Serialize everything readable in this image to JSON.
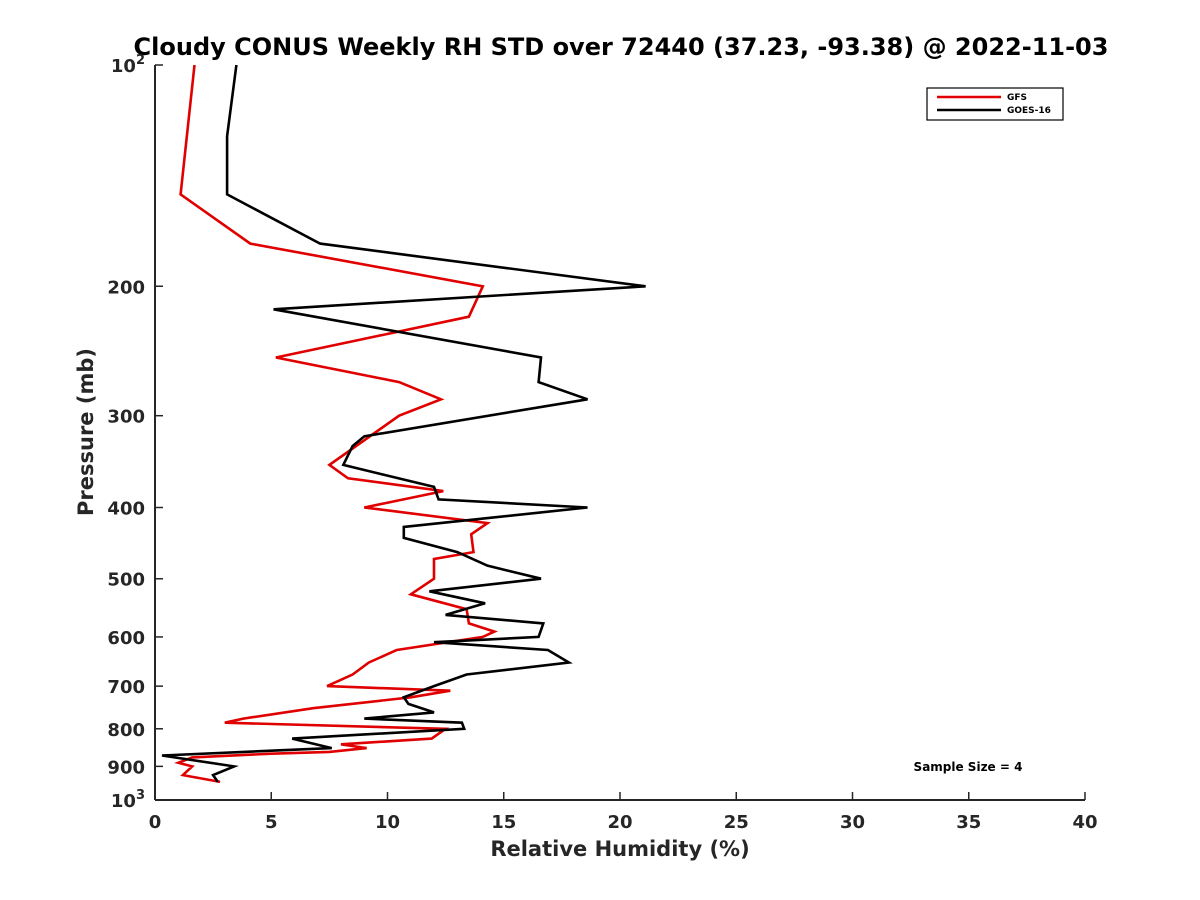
{
  "chart_data": {
    "type": "line",
    "title": "Cloudy CONUS Weekly RH STD over 72440 (37.23, -93.38) @ 2022-11-03",
    "xlabel": "Relative Humidity (%)",
    "ylabel": "Pressure (mb)",
    "xlim": [
      0,
      40
    ],
    "ylim": [
      100,
      1000
    ],
    "y_scale": "log",
    "y_reversed": true,
    "xticks": [
      "0",
      "5",
      "10",
      "15",
      "20",
      "25",
      "30",
      "35",
      "40"
    ],
    "yticks": [
      {
        "value": 100,
        "base": "10",
        "exp": "2"
      },
      {
        "value": 200,
        "label": "200"
      },
      {
        "value": 300,
        "label": "300"
      },
      {
        "value": 400,
        "label": "400"
      },
      {
        "value": 500,
        "label": "500"
      },
      {
        "value": 600,
        "label": "600"
      },
      {
        "value": 700,
        "label": "700"
      },
      {
        "value": 800,
        "label": "800"
      },
      {
        "value": 900,
        "label": "900"
      },
      {
        "value": 1000,
        "base": "10",
        "exp": "3"
      }
    ],
    "grid": false,
    "legend_position": "top-right",
    "annotation": "Sample Size = 4",
    "series": [
      {
        "name": "GFS",
        "color": "#e00000",
        "points": [
          [
            1.7,
            100
          ],
          [
            1.1,
            150
          ],
          [
            4.1,
            175
          ],
          [
            14.1,
            200
          ],
          [
            13.5,
            220
          ],
          [
            5.2,
            250
          ],
          [
            10.5,
            270
          ],
          [
            12.3,
            285
          ],
          [
            10.5,
            300
          ],
          [
            7.5,
            350
          ],
          [
            8.3,
            365
          ],
          [
            12.4,
            380
          ],
          [
            9.0,
            400
          ],
          [
            14.3,
            420
          ],
          [
            13.6,
            435
          ],
          [
            13.7,
            460
          ],
          [
            12.0,
            470
          ],
          [
            12.0,
            500
          ],
          [
            11.0,
            525
          ],
          [
            13.4,
            550
          ],
          [
            13.5,
            575
          ],
          [
            14.6,
            590
          ],
          [
            14.1,
            600
          ],
          [
            10.4,
            625
          ],
          [
            9.2,
            650
          ],
          [
            8.5,
            675
          ],
          [
            7.4,
            700
          ],
          [
            12.7,
            710
          ],
          [
            11.0,
            725
          ],
          [
            6.8,
            750
          ],
          [
            3.8,
            775
          ],
          [
            3.0,
            785
          ],
          [
            12.5,
            800
          ],
          [
            11.9,
            825
          ],
          [
            8.0,
            840
          ],
          [
            9.1,
            850
          ],
          [
            7.5,
            860
          ],
          [
            5.0,
            865
          ],
          [
            1.6,
            875
          ],
          [
            1.0,
            890
          ],
          [
            1.6,
            900
          ],
          [
            1.2,
            925
          ],
          [
            2.8,
            945
          ]
        ]
      },
      {
        "name": "GOES-16",
        "color": "#000000",
        "points": [
          [
            3.5,
            100
          ],
          [
            3.1,
            125
          ],
          [
            3.1,
            150
          ],
          [
            7.1,
            175
          ],
          [
            21.1,
            200
          ],
          [
            5.1,
            215
          ],
          [
            16.6,
            250
          ],
          [
            16.5,
            270
          ],
          [
            18.6,
            285
          ],
          [
            9.0,
            320
          ],
          [
            8.5,
            330
          ],
          [
            8.1,
            350
          ],
          [
            12.0,
            375
          ],
          [
            12.2,
            390
          ],
          [
            18.6,
            400
          ],
          [
            10.7,
            425
          ],
          [
            10.7,
            440
          ],
          [
            13.0,
            460
          ],
          [
            14.3,
            480
          ],
          [
            16.6,
            500
          ],
          [
            11.8,
            520
          ],
          [
            14.2,
            540
          ],
          [
            12.5,
            560
          ],
          [
            16.7,
            575
          ],
          [
            16.5,
            600
          ],
          [
            12.0,
            610
          ],
          [
            16.9,
            625
          ],
          [
            17.8,
            650
          ],
          [
            13.4,
            675
          ],
          [
            12.0,
            700
          ],
          [
            10.7,
            725
          ],
          [
            10.9,
            740
          ],
          [
            12.0,
            760
          ],
          [
            9.0,
            775
          ],
          [
            13.2,
            785
          ],
          [
            13.3,
            800
          ],
          [
            5.9,
            825
          ],
          [
            7.6,
            850
          ],
          [
            0.3,
            870
          ],
          [
            3.4,
            900
          ],
          [
            2.5,
            925
          ],
          [
            2.7,
            945
          ]
        ]
      }
    ]
  }
}
